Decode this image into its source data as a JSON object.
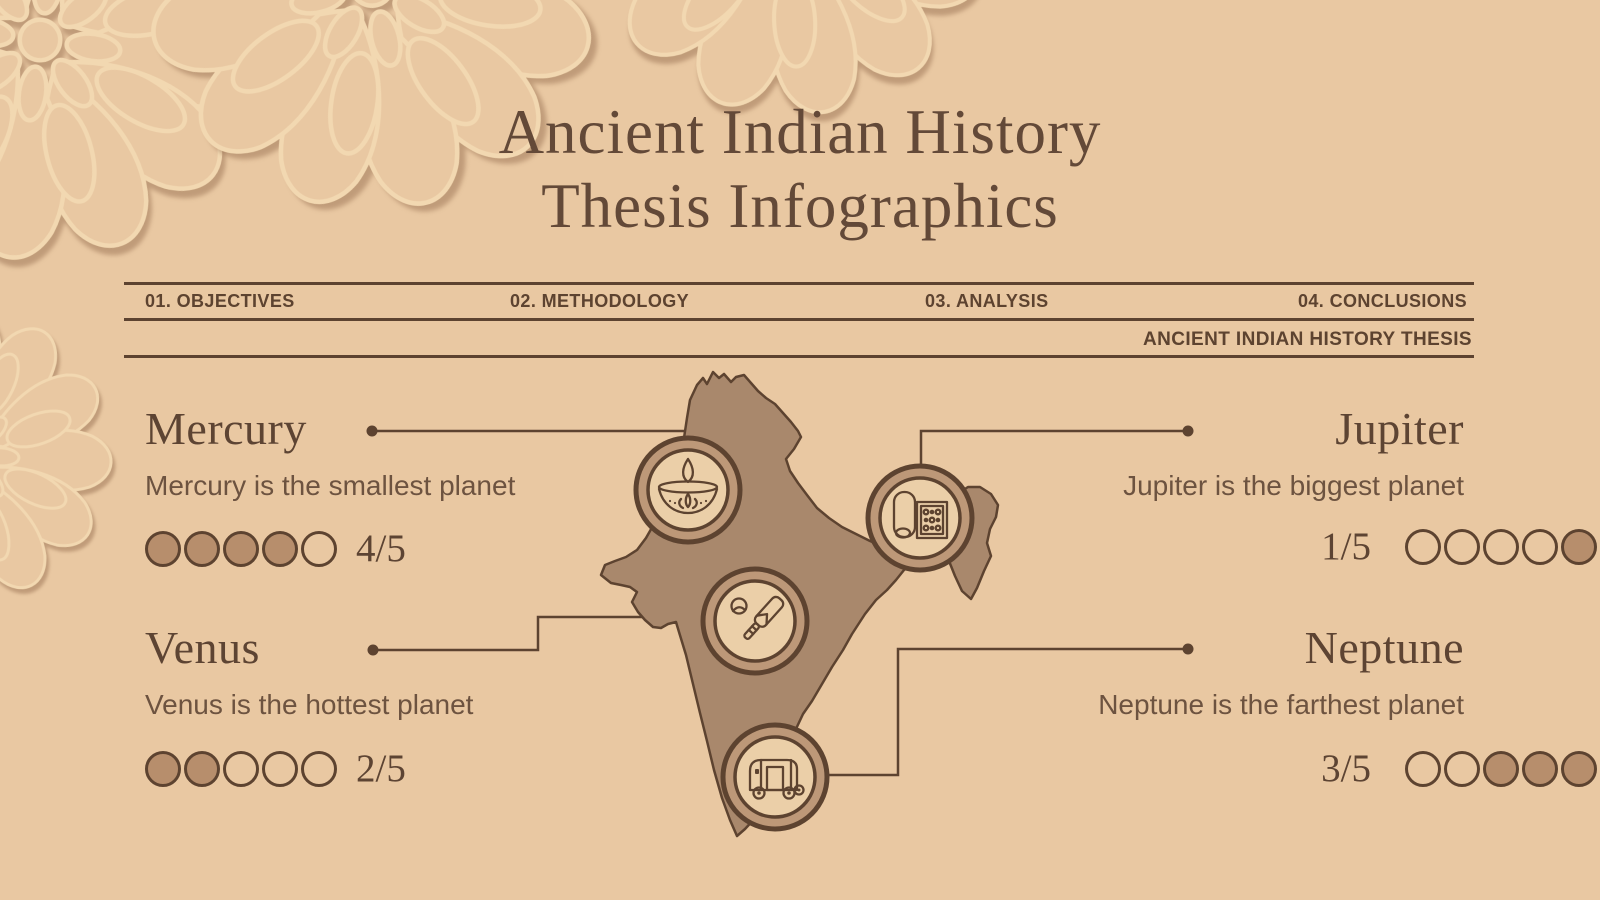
{
  "page": {
    "title_line1": "Ancient Indian History",
    "title_line2": "Thesis Infographics"
  },
  "nav": {
    "items": [
      "01. OBJECTIVES",
      "02. METHODOLOGY",
      "03. ANALYSIS",
      "04. CONCLUSIONS"
    ],
    "breadcrumb": "ANCIENT INDIAN HISTORY THESIS"
  },
  "planets": [
    {
      "name": "Mercury",
      "description": "Mercury is the smallest planet",
      "score": "4/5",
      "dots": [
        1,
        1,
        1,
        1,
        0
      ]
    },
    {
      "name": "Venus",
      "description": "Venus is the hottest planet",
      "score": "2/5",
      "dots": [
        1,
        1,
        0,
        0,
        0
      ]
    },
    {
      "name": "Jupiter",
      "description": "Jupiter is the biggest planet",
      "score": "1/5",
      "dots": [
        0,
        0,
        0,
        0,
        1
      ]
    },
    {
      "name": "Neptune",
      "description": "Neptune is the farthest planet",
      "score": "3/5",
      "dots": [
        0,
        0,
        1,
        1,
        1
      ]
    }
  ],
  "map": {
    "region": "India",
    "icons": [
      "diya-lamp-icon",
      "scroll-manuscript-icon",
      "cricket-bat-ball-icon",
      "auto-rickshaw-icon"
    ]
  },
  "decorations": [
    "mandala-pattern"
  ],
  "colors": {
    "background": "#e9c8a2",
    "ink": "#5d4330",
    "map_fill": "#a9886c",
    "badge_band": "#bd9878",
    "badge_inner": "#ebcfa8",
    "dot_fill": "#b78e6c"
  }
}
